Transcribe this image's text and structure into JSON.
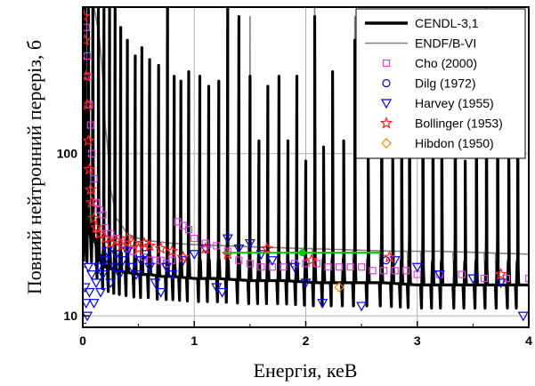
{
  "chart_data": {
    "type": "line",
    "xlabel": "Енергія, кеВ",
    "ylabel": "Повний нейтронний переріз, б",
    "xlim": [
      0,
      4
    ],
    "ylim": [
      8.5,
      800
    ],
    "yscale": "log",
    "grid": true,
    "legend_placement": "top-right",
    "x_ticks": [
      0,
      1,
      2,
      3,
      4
    ],
    "y_ticks": [
      10,
      100
    ],
    "series": [
      {
        "name": "CENDL-3,1",
        "kind": "line",
        "color": "#000000",
        "background_x": [
          0.1,
          0.15,
          0.2,
          0.3,
          0.4,
          0.5,
          0.6,
          0.7,
          0.8,
          1.0,
          1.2,
          1.5,
          1.8,
          2.1,
          2.4,
          2.7,
          3.0,
          3.3,
          3.6,
          4.0
        ],
        "background_y": [
          30,
          22,
          20,
          19,
          18.5,
          18,
          18,
          17.5,
          17.5,
          17,
          17,
          16.5,
          16.5,
          16,
          16,
          16,
          15.5,
          15.5,
          15.5,
          15.5
        ],
        "resonances": [
          {
            "x": 0.02,
            "y": 800
          },
          {
            "x": 0.05,
            "y": 800
          },
          {
            "x": 0.09,
            "y": 800
          },
          {
            "x": 0.14,
            "y": 800
          },
          {
            "x": 0.19,
            "y": 800
          },
          {
            "x": 0.24,
            "y": 800
          },
          {
            "x": 0.29,
            "y": 800
          },
          {
            "x": 0.34,
            "y": 600
          },
          {
            "x": 0.4,
            "y": 500
          },
          {
            "x": 0.47,
            "y": 400
          },
          {
            "x": 0.53,
            "y": 450
          },
          {
            "x": 0.6,
            "y": 380
          },
          {
            "x": 0.68,
            "y": 350
          },
          {
            "x": 0.76,
            "y": 800
          },
          {
            "x": 0.82,
            "y": 300
          },
          {
            "x": 0.88,
            "y": 280
          },
          {
            "x": 0.95,
            "y": 320
          },
          {
            "x": 1.05,
            "y": 300
          },
          {
            "x": 1.13,
            "y": 260
          },
          {
            "x": 1.22,
            "y": 280
          },
          {
            "x": 1.3,
            "y": 800
          },
          {
            "x": 1.4,
            "y": 700
          },
          {
            "x": 1.5,
            "y": 300
          },
          {
            "x": 1.58,
            "y": 120
          },
          {
            "x": 1.66,
            "y": 260
          },
          {
            "x": 1.76,
            "y": 300
          },
          {
            "x": 1.84,
            "y": 120
          },
          {
            "x": 1.92,
            "y": 300
          },
          {
            "x": 2.0,
            "y": 90
          },
          {
            "x": 2.08,
            "y": 700
          },
          {
            "x": 2.16,
            "y": 110
          },
          {
            "x": 2.24,
            "y": 320
          },
          {
            "x": 2.34,
            "y": 120
          },
          {
            "x": 2.44,
            "y": 500
          },
          {
            "x": 2.56,
            "y": 110
          },
          {
            "x": 2.68,
            "y": 450
          },
          {
            "x": 2.78,
            "y": 100
          },
          {
            "x": 2.86,
            "y": 170
          },
          {
            "x": 2.93,
            "y": 320
          },
          {
            "x": 3.05,
            "y": 500
          },
          {
            "x": 3.14,
            "y": 320
          },
          {
            "x": 3.22,
            "y": 180
          },
          {
            "x": 3.34,
            "y": 340
          },
          {
            "x": 3.43,
            "y": 90
          },
          {
            "x": 3.53,
            "y": 320
          },
          {
            "x": 3.62,
            "y": 500
          },
          {
            "x": 3.72,
            "y": 600
          },
          {
            "x": 3.82,
            "y": 180
          },
          {
            "x": 3.9,
            "y": 350
          }
        ]
      },
      {
        "name": "ENDF/B-VI",
        "kind": "line",
        "color": "#808080",
        "background_x": [
          0.1,
          0.15,
          0.2,
          0.25,
          0.3,
          0.4,
          0.5,
          0.6,
          0.8,
          1.0,
          1.3,
          1.6,
          2.0,
          2.4,
          2.8,
          3.2,
          3.6,
          4.0
        ],
        "background_y": [
          800,
          500,
          150,
          60,
          40,
          32,
          30,
          29,
          28,
          27.5,
          27,
          26.5,
          26,
          25.5,
          25,
          25,
          24.5,
          24
        ],
        "resonances": [
          {
            "x": 1.3,
            "y": 800
          },
          {
            "x": 1.5,
            "y": 700
          },
          {
            "x": 2.08,
            "y": 800
          },
          {
            "x": 2.44,
            "y": 700
          },
          {
            "x": 2.68,
            "y": 250
          },
          {
            "x": 2.93,
            "y": 500
          },
          {
            "x": 3.05,
            "y": 700
          },
          {
            "x": 3.34,
            "y": 200
          },
          {
            "x": 3.62,
            "y": 800
          },
          {
            "x": 3.72,
            "y": 700
          }
        ]
      },
      {
        "name": "Cho (2000)",
        "kind": "scatter",
        "marker": "square",
        "color": "#e040e0",
        "x": [
          0.03,
          0.04,
          0.05,
          0.06,
          0.07,
          0.08,
          0.1,
          0.12,
          0.15,
          0.18,
          0.2,
          0.25,
          0.3,
          0.35,
          0.4,
          0.45,
          0.5,
          0.55,
          0.6,
          0.65,
          0.7,
          0.75,
          0.8,
          0.85,
          0.9,
          0.95,
          1.0,
          1.1,
          1.2,
          1.3,
          1.4,
          1.5,
          1.6,
          1.7,
          1.8,
          1.9,
          2.0,
          2.1,
          2.2,
          2.3,
          2.4,
          2.5,
          2.6,
          2.7,
          2.8,
          2.9,
          3.0,
          3.2,
          3.4,
          3.6,
          3.8,
          4.0
        ],
        "y": [
          600,
          400,
          300,
          200,
          150,
          100,
          70,
          50,
          45,
          42,
          35,
          32,
          30,
          28,
          26,
          25,
          24,
          23,
          22,
          22,
          22,
          21,
          22,
          38,
          36,
          34,
          30,
          28,
          27,
          25,
          22,
          21,
          20,
          20,
          20,
          21,
          21,
          21,
          20,
          20,
          20,
          20,
          19,
          19,
          19,
          19,
          18,
          18,
          18,
          17,
          17,
          17
        ]
      },
      {
        "name": "Dilg (1972)",
        "kind": "scatter",
        "marker": "circle",
        "color": "#0000cc",
        "x": [
          2.72
        ],
        "y": [
          22
        ]
      },
      {
        "name": "Harvey (1955)",
        "kind": "scatter",
        "marker": "triangle-down",
        "color": "#0000ee",
        "x": [
          0.02,
          0.03,
          0.04,
          0.05,
          0.06,
          0.08,
          0.1,
          0.12,
          0.14,
          0.16,
          0.18,
          0.2,
          0.22,
          0.25,
          0.28,
          0.3,
          0.33,
          0.36,
          0.4,
          0.44,
          0.48,
          0.52,
          0.56,
          0.6,
          0.65,
          0.7,
          0.75,
          0.8,
          0.9,
          1.0,
          1.1,
          1.2,
          1.25,
          1.3,
          1.4,
          1.5,
          1.6,
          1.7,
          1.9,
          2.0,
          2.15,
          2.5,
          2.8,
          3.0,
          3.2,
          3.5,
          3.75,
          3.95
        ],
        "y": [
          15,
          12,
          10,
          20,
          14,
          18,
          12,
          16,
          20,
          14,
          18,
          22,
          25,
          16,
          20,
          24,
          18,
          22,
          25,
          20,
          18,
          22,
          24,
          20,
          16,
          14,
          20,
          18,
          22,
          24,
          26,
          15,
          14,
          30,
          26,
          28,
          24,
          22,
          20,
          16,
          12,
          11.5,
          22,
          20,
          18,
          17,
          16,
          10
        ]
      },
      {
        "name": "Bollinger (1953)",
        "kind": "scatter",
        "marker": "star",
        "color": "#ff2020",
        "x": [
          0.01,
          0.02,
          0.03,
          0.04,
          0.05,
          0.06,
          0.07,
          0.08,
          0.1,
          0.12,
          0.15,
          0.2,
          0.25,
          0.3,
          0.35,
          0.4,
          0.45,
          0.5,
          0.55,
          0.6,
          0.7,
          0.8,
          0.9,
          1.1,
          1.3,
          1.65,
          2.05,
          2.75,
          3.75
        ],
        "y": [
          700,
          500,
          300,
          200,
          120,
          80,
          60,
          50,
          40,
          35,
          32,
          30,
          28,
          29,
          27,
          30,
          28,
          26,
          28,
          27,
          26,
          25,
          23,
          26,
          24,
          26,
          22,
          23,
          18
        ]
      },
      {
        "name": "Hibdon (1950)",
        "kind": "scatter",
        "marker": "diamond",
        "color": "#ff8000",
        "x": [
          2.3
        ],
        "y": [
          15
        ]
      },
      {
        "name": "",
        "kind": "scatter-with-xerror",
        "color": "#00cc00",
        "x": [
          1.97
        ],
        "y": [
          24.5
        ],
        "xerr": [
          0.7
        ]
      }
    ]
  }
}
